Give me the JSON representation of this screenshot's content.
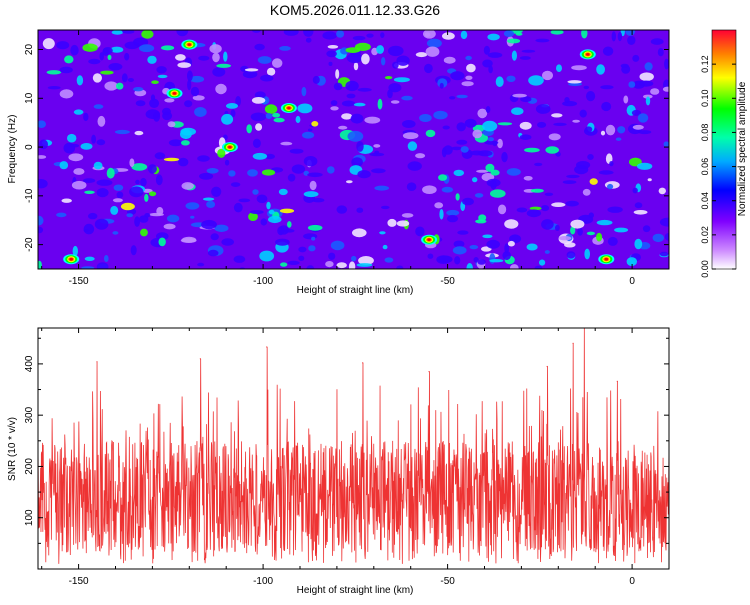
{
  "page_title": "KOM5.2026.011.12.33.G26",
  "chart_data": [
    {
      "type": "heatmap",
      "xlabel": "Height of straight line (km)",
      "ylabel": "Frequency (Hz)",
      "xlim": [
        -161,
        10
      ],
      "ylim": [
        -25,
        24
      ],
      "x_ticks": [
        -150,
        -100,
        -50,
        0
      ],
      "y_ticks": [
        -20,
        -10,
        0,
        10,
        20
      ],
      "x_tick_labels": [
        "-150",
        "-100",
        "-50",
        "0"
      ],
      "y_tick_labels": [
        "-20",
        "-10",
        "0",
        "10",
        "20"
      ],
      "colorbar": {
        "label": "Normalized spectral amplitude",
        "range": [
          0.0,
          0.14
        ],
        "ticks": [
          0.0,
          0.02,
          0.04,
          0.06,
          0.08,
          0.1,
          0.12
        ],
        "tick_labels": [
          "0.00",
          "0.02",
          "0.04",
          "0.06",
          "0.08",
          "0.10",
          "0.12"
        ],
        "colormap": [
          "#ffffff",
          "#7f00ff",
          "#0000ff",
          "#00e0ff",
          "#00ff00",
          "#ffff00",
          "#ff8000",
          "#ff0000"
        ]
      },
      "hot_spots": [
        {
          "x": -109,
          "y": 0,
          "value": 0.13
        },
        {
          "x": -124,
          "y": 11,
          "value": 0.12
        },
        {
          "x": -152,
          "y": -23,
          "value": 0.12
        },
        {
          "x": -7,
          "y": -23,
          "value": 0.13
        },
        {
          "x": -93,
          "y": 8,
          "value": 0.11
        },
        {
          "x": -12,
          "y": 19,
          "value": 0.1
        },
        {
          "x": -55,
          "y": -19,
          "value": 0.11
        },
        {
          "x": -120,
          "y": 21,
          "value": 0.09
        }
      ]
    },
    {
      "type": "line",
      "xlabel": "Height of straight line (km)",
      "ylabel": "SNR (10 * v/v)",
      "xlim": [
        -161,
        10
      ],
      "ylim": [
        0,
        470
      ],
      "x_ticks": [
        -150,
        -100,
        -50,
        0
      ],
      "y_ticks": [
        100,
        200,
        300,
        400
      ],
      "x_tick_labels": [
        "-150",
        "-100",
        "-50",
        "0"
      ],
      "y_tick_labels": [
        "100",
        "200",
        "300",
        "400"
      ],
      "series": [
        {
          "name": "SNR",
          "color": "#ee3333",
          "typical_range": [
            30,
            250
          ],
          "peaks": [
            {
              "x": -145,
              "y": 404
            },
            {
              "x": -117,
              "y": 410
            },
            {
              "x": -99,
              "y": 433
            },
            {
              "x": -73,
              "y": 402
            },
            {
              "x": -55,
              "y": 385
            },
            {
              "x": -23,
              "y": 395
            },
            {
              "x": -16,
              "y": 440
            },
            {
              "x": -13,
              "y": 470
            },
            {
              "x": -4,
              "y": 366
            }
          ]
        }
      ]
    }
  ]
}
